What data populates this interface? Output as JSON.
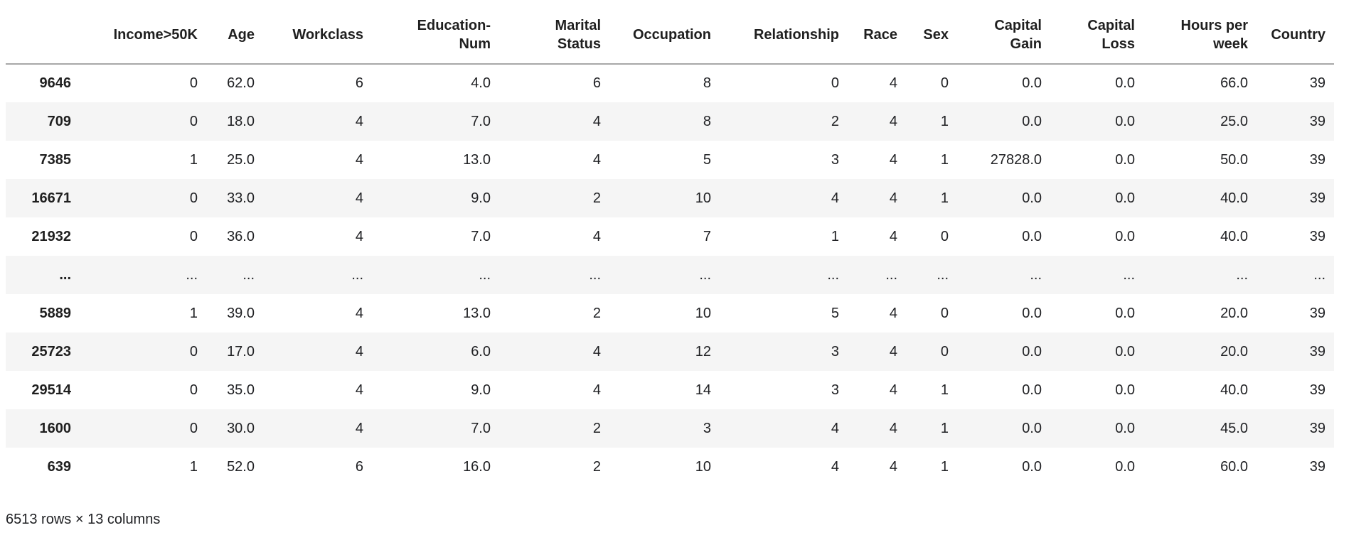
{
  "colors": {
    "row_stripe": "#f5f5f5",
    "header_border": "#a8a8a8",
    "text": "#202124"
  },
  "table": {
    "index_header": "",
    "columns": [
      "Income>50K",
      "Age",
      "Workclass",
      "Education-\nNum",
      "Marital\nStatus",
      "Occupation",
      "Relationship",
      "Race",
      "Sex",
      "Capital\nGain",
      "Capital\nLoss",
      "Hours per\nweek",
      "Country"
    ],
    "rows": [
      {
        "index": "9646",
        "values": [
          "0",
          "62.0",
          "6",
          "4.0",
          "6",
          "8",
          "0",
          "4",
          "0",
          "0.0",
          "0.0",
          "66.0",
          "39"
        ]
      },
      {
        "index": "709",
        "values": [
          "0",
          "18.0",
          "4",
          "7.0",
          "4",
          "8",
          "2",
          "4",
          "1",
          "0.0",
          "0.0",
          "25.0",
          "39"
        ]
      },
      {
        "index": "7385",
        "values": [
          "1",
          "25.0",
          "4",
          "13.0",
          "4",
          "5",
          "3",
          "4",
          "1",
          "27828.0",
          "0.0",
          "50.0",
          "39"
        ]
      },
      {
        "index": "16671",
        "values": [
          "0",
          "33.0",
          "4",
          "9.0",
          "2",
          "10",
          "4",
          "4",
          "1",
          "0.0",
          "0.0",
          "40.0",
          "39"
        ]
      },
      {
        "index": "21932",
        "values": [
          "0",
          "36.0",
          "4",
          "7.0",
          "4",
          "7",
          "1",
          "4",
          "0",
          "0.0",
          "0.0",
          "40.0",
          "39"
        ]
      },
      {
        "index": "...",
        "values": [
          "...",
          "...",
          "...",
          "...",
          "...",
          "...",
          "...",
          "...",
          "...",
          "...",
          "...",
          "...",
          "..."
        ]
      },
      {
        "index": "5889",
        "values": [
          "1",
          "39.0",
          "4",
          "13.0",
          "2",
          "10",
          "5",
          "4",
          "0",
          "0.0",
          "0.0",
          "20.0",
          "39"
        ]
      },
      {
        "index": "25723",
        "values": [
          "0",
          "17.0",
          "4",
          "6.0",
          "4",
          "12",
          "3",
          "4",
          "0",
          "0.0",
          "0.0",
          "20.0",
          "39"
        ]
      },
      {
        "index": "29514",
        "values": [
          "0",
          "35.0",
          "4",
          "9.0",
          "4",
          "14",
          "3",
          "4",
          "1",
          "0.0",
          "0.0",
          "40.0",
          "39"
        ]
      },
      {
        "index": "1600",
        "values": [
          "0",
          "30.0",
          "4",
          "7.0",
          "2",
          "3",
          "4",
          "4",
          "1",
          "0.0",
          "0.0",
          "45.0",
          "39"
        ]
      },
      {
        "index": "639",
        "values": [
          "1",
          "52.0",
          "6",
          "16.0",
          "2",
          "10",
          "4",
          "4",
          "1",
          "0.0",
          "0.0",
          "60.0",
          "39"
        ]
      }
    ],
    "summary": "6513 rows × 13 columns"
  }
}
